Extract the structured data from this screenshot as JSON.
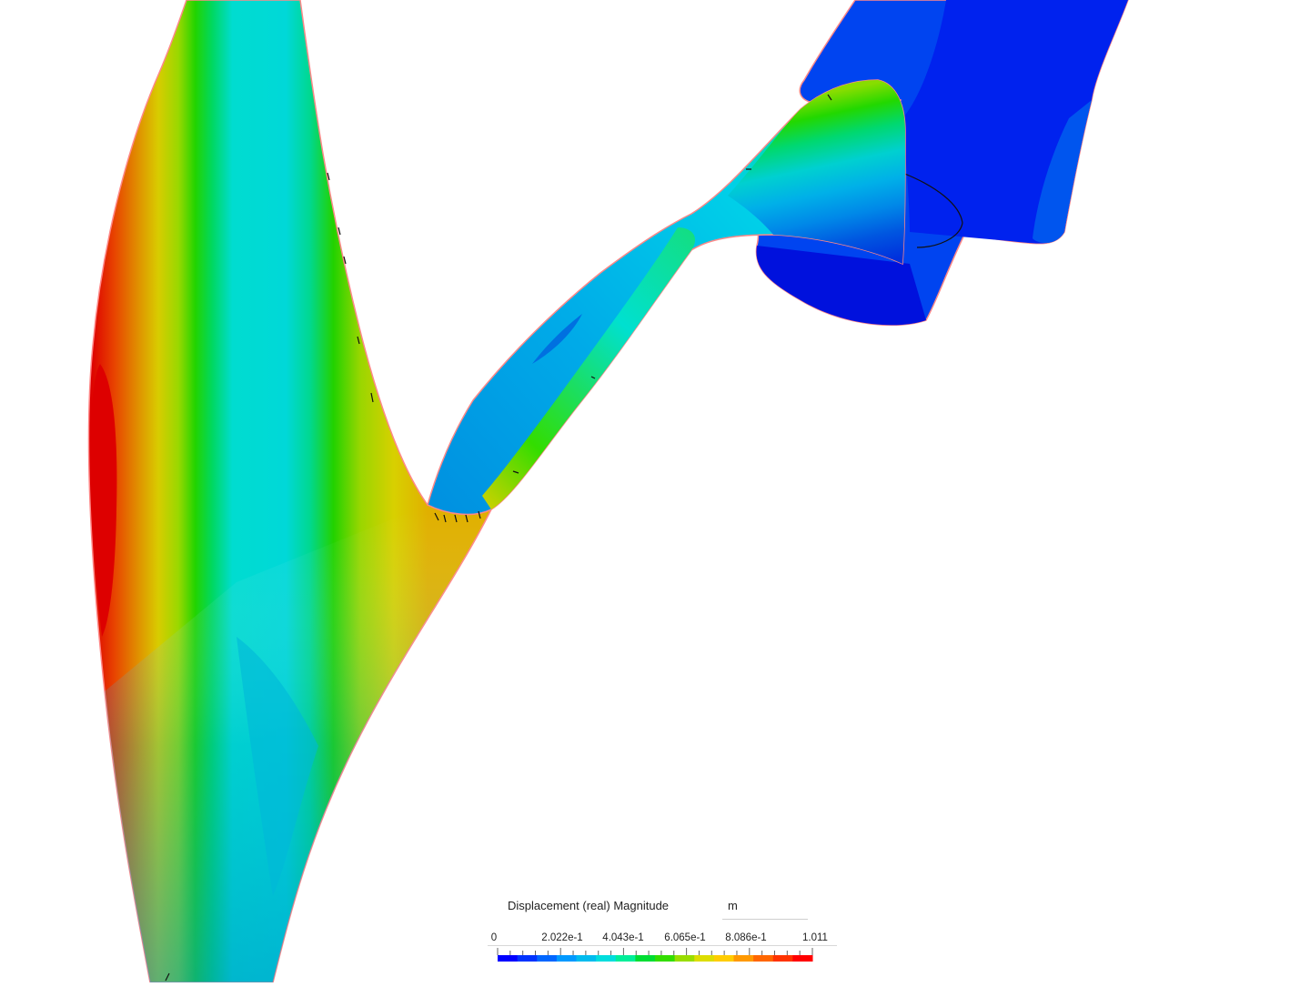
{
  "legend": {
    "title": "Displacement (real) Magnitude",
    "unit": "m",
    "min": 0,
    "max": 1.011,
    "tick_labels": [
      "0",
      "2.022e-1",
      "4.043e-1",
      "6.065e-1",
      "8.086e-1",
      "1.011"
    ],
    "color_stops": [
      "#0000ff",
      "#0033ff",
      "#0066ff",
      "#0099ff",
      "#00bbee",
      "#00dddd",
      "#00ee99",
      "#00dd33",
      "#33dd00",
      "#99dd00",
      "#dddd00",
      "#ffcc00",
      "#ff9900",
      "#ff6600",
      "#ff3300",
      "#ff0000"
    ]
  }
}
